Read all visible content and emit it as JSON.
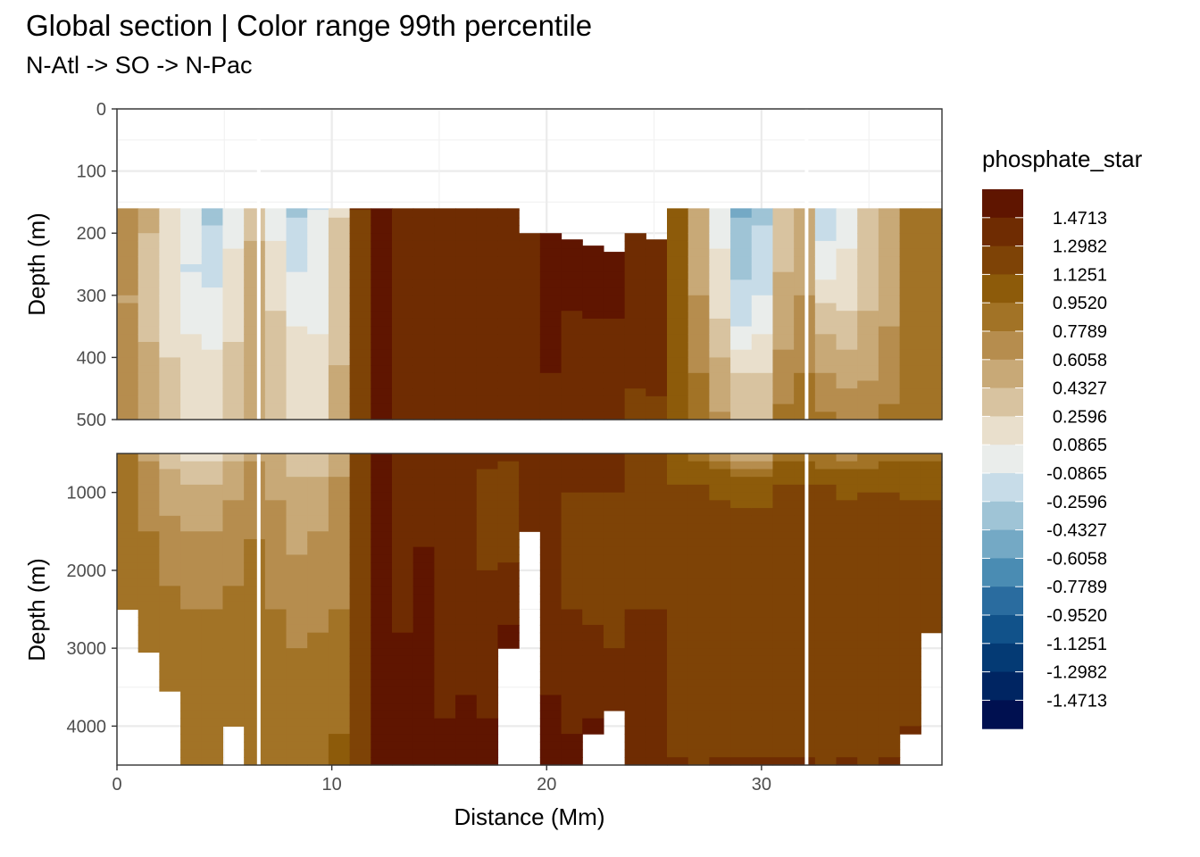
{
  "chart_data": {
    "type": "heatmap",
    "title": "Global section | Color range 99th percentile",
    "subtitle": "N-Atl -> SO -> N-Pac",
    "xlabel": "Distance (Mm)",
    "ylabel": "Depth (m)",
    "xlim": [
      0,
      38.4
    ],
    "x_ticks": [
      0,
      10,
      20,
      30
    ],
    "panels": [
      {
        "name": "upper",
        "ylim": [
          0,
          500
        ],
        "y_ticks": [
          0,
          100,
          200,
          300,
          400,
          500
        ]
      },
      {
        "name": "lower",
        "ylim": [
          500,
          4500
        ],
        "y_ticks": [
          1000,
          2000,
          3000,
          4000
        ]
      }
    ],
    "legend": {
      "title": "phosphate_star",
      "placement": "right",
      "labels": [
        "1.4713",
        "1.2982",
        "1.1251",
        "0.9520",
        "0.7789",
        "0.6058",
        "0.4327",
        "0.2596",
        "0.0865",
        "-0.0865",
        "-0.2596",
        "-0.4327",
        "-0.6058",
        "-0.7789",
        "-0.9520",
        "-1.1251",
        "-1.2982",
        "-1.4713"
      ],
      "colors": [
        "#5f1500",
        "#6f2c02",
        "#7e4306",
        "#8d5b0a",
        "#a27326",
        "#b68d4e",
        "#c8a977",
        "#d8c3a0",
        "#e9dfcc",
        "#eaedeb",
        "#c7dce8",
        "#9fc4d6",
        "#74a9c5",
        "#4a8cb3",
        "#2a6c9f",
        "#11528a",
        "#043a74",
        "#002562",
        "#001050"
      ]
    },
    "columns": [
      {
        "x": 0.0,
        "max_depth": 2500,
        "profile": [
          [
            160,
            0.78
          ],
          [
            300,
            0.6
          ],
          [
            500,
            0.78
          ],
          [
            1000,
            0.78
          ],
          [
            2000,
            0.95
          ],
          [
            4500,
            0.95
          ]
        ]
      },
      {
        "x": 1.0,
        "max_depth": 3050,
        "profile": [
          [
            160,
            0.5
          ],
          [
            260,
            0.35
          ],
          [
            400,
            0.45
          ],
          [
            800,
            0.7
          ],
          [
            1500,
            0.78
          ],
          [
            2500,
            0.95
          ]
        ]
      },
      {
        "x": 2.0,
        "max_depth": 3550,
        "profile": [
          [
            160,
            0.2
          ],
          [
            250,
            0.1
          ],
          [
            380,
            0.25
          ],
          [
            800,
            0.5
          ],
          [
            1300,
            0.6
          ],
          [
            2200,
            0.78
          ],
          [
            3000,
            0.95
          ]
        ]
      },
      {
        "x": 3.0,
        "max_depth": 4500,
        "profile": [
          [
            160,
            0.0
          ],
          [
            260,
            -0.09
          ],
          [
            420,
            0.17
          ],
          [
            800,
            0.4
          ],
          [
            1500,
            0.6
          ],
          [
            2500,
            0.78
          ],
          [
            4500,
            0.95
          ]
        ]
      },
      {
        "x": 4.0,
        "max_depth": 4500,
        "profile": [
          [
            160,
            -0.3
          ],
          [
            250,
            -0.15
          ],
          [
            400,
            0.1
          ],
          [
            800,
            0.4
          ],
          [
            1500,
            0.6
          ],
          [
            2500,
            0.78
          ],
          [
            4500,
            0.95
          ]
        ]
      },
      {
        "x": 5.0,
        "max_depth": 4000,
        "profile": [
          [
            160,
            0.0
          ],
          [
            300,
            0.17
          ],
          [
            450,
            0.35
          ],
          [
            900,
            0.55
          ],
          [
            1500,
            0.7
          ],
          [
            2500,
            0.82
          ],
          [
            4000,
            0.95
          ]
        ]
      },
      {
        "x": 6.0,
        "max_depth": 4500,
        "profile": [
          [
            160,
            0.4
          ],
          [
            400,
            0.55
          ],
          [
            900,
            0.7
          ],
          [
            2000,
            0.82
          ],
          [
            4500,
            0.95
          ]
        ]
      },
      {
        "x": 7.0,
        "max_depth": 4500,
        "profile": [
          [
            160,
            0.0
          ],
          [
            350,
            0.3
          ],
          [
            700,
            0.55
          ],
          [
            1500,
            0.65
          ],
          [
            2500,
            0.78
          ],
          [
            4500,
            0.95
          ]
        ]
      },
      {
        "x": 8.0,
        "max_depth": 4500,
        "profile": [
          [
            160,
            -0.3
          ],
          [
            250,
            -0.1
          ],
          [
            400,
            0.17
          ],
          [
            900,
            0.5
          ],
          [
            1800,
            0.6
          ],
          [
            3000,
            0.78
          ],
          [
            4500,
            0.95
          ]
        ]
      },
      {
        "x": 9.0,
        "max_depth": 4500,
        "profile": [
          [
            160,
            -0.09
          ],
          [
            300,
            0.0
          ],
          [
            450,
            0.2
          ],
          [
            800,
            0.45
          ],
          [
            1500,
            0.6
          ],
          [
            2800,
            0.78
          ],
          [
            4500,
            0.95
          ]
        ]
      },
      {
        "x": 10.0,
        "max_depth": 4500,
        "profile": [
          [
            160,
            0.25
          ],
          [
            350,
            0.4
          ],
          [
            700,
            0.6
          ],
          [
            1500,
            0.65
          ],
          [
            2500,
            0.78
          ],
          [
            4500,
            1.0
          ]
        ]
      },
      {
        "x": 11.0,
        "max_depth": 4500,
        "profile": [
          [
            160,
            1.3
          ],
          [
            500,
            1.2
          ],
          [
            1000,
            1.15
          ],
          [
            2500,
            1.2
          ],
          [
            4500,
            1.3
          ]
        ]
      },
      {
        "x": 12.0,
        "max_depth": 4500,
        "profile": [
          [
            160,
            1.5
          ],
          [
            2000,
            1.5
          ],
          [
            4500,
            1.5
          ]
        ]
      },
      {
        "x": 13.0,
        "max_depth": 4500,
        "profile": [
          [
            160,
            1.4
          ],
          [
            1500,
            1.45
          ],
          [
            4500,
            1.5
          ]
        ]
      },
      {
        "x": 14.0,
        "max_depth": 4500,
        "profile": [
          [
            160,
            1.4
          ],
          [
            1000,
            1.4
          ],
          [
            2000,
            1.5
          ],
          [
            4500,
            1.5
          ]
        ]
      },
      {
        "x": 15.0,
        "max_depth": 4500,
        "profile": [
          [
            160,
            1.4
          ],
          [
            1000,
            1.3
          ],
          [
            2500,
            1.4
          ],
          [
            4500,
            1.5
          ]
        ]
      },
      {
        "x": 16.0,
        "max_depth": 4500,
        "profile": [
          [
            160,
            1.4
          ],
          [
            800,
            1.3
          ],
          [
            2000,
            1.3
          ],
          [
            3000,
            1.45
          ],
          [
            4500,
            1.5
          ]
        ]
      },
      {
        "x": 17.0,
        "max_depth": 4500,
        "profile": [
          [
            160,
            1.4
          ],
          [
            700,
            1.3
          ],
          [
            1500,
            1.2
          ],
          [
            2500,
            1.4
          ],
          [
            4500,
            1.5
          ]
        ]
      },
      {
        "x": 18.0,
        "max_depth": 3000,
        "profile": [
          [
            160,
            1.4
          ],
          [
            600,
            1.3
          ],
          [
            1500,
            1.2
          ],
          [
            2500,
            1.45
          ],
          [
            3000,
            1.5
          ]
        ]
      },
      {
        "x": 19.0,
        "max_depth": 1500,
        "profile": [
          [
            200,
            1.4
          ],
          [
            600,
            1.3
          ],
          [
            1200,
            1.3
          ],
          [
            1500,
            1.4
          ]
        ]
      },
      {
        "x": 20.0,
        "max_depth": 4500,
        "profile": [
          [
            200,
            1.5
          ],
          [
            1000,
            1.4
          ],
          [
            2000,
            1.3
          ],
          [
            3000,
            1.45
          ],
          [
            4500,
            1.5
          ]
        ]
      },
      {
        "x": 21.0,
        "max_depth": 4500,
        "profile": [
          [
            210,
            1.5
          ],
          [
            1000,
            1.3
          ],
          [
            2000,
            1.2
          ],
          [
            3000,
            1.4
          ],
          [
            4500,
            1.5
          ]
        ]
      },
      {
        "x": 22.0,
        "max_depth": 4100,
        "profile": [
          [
            220,
            1.5
          ],
          [
            1000,
            1.3
          ],
          [
            2000,
            1.2
          ],
          [
            3000,
            1.35
          ],
          [
            4100,
            1.5
          ]
        ]
      },
      {
        "x": 23.0,
        "max_depth": 3800,
        "profile": [
          [
            230,
            1.5
          ],
          [
            1000,
            1.3
          ],
          [
            2000,
            1.2
          ],
          [
            3000,
            1.3
          ],
          [
            3800,
            1.45
          ]
        ]
      },
      {
        "x": 24.0,
        "max_depth": 4500,
        "profile": [
          [
            200,
            1.4
          ],
          [
            700,
            1.2
          ],
          [
            1500,
            1.2
          ],
          [
            2500,
            1.3
          ],
          [
            4500,
            1.3
          ]
        ]
      },
      {
        "x": 25.0,
        "max_depth": 4500,
        "profile": [
          [
            210,
            1.4
          ],
          [
            700,
            1.2
          ],
          [
            1500,
            1.25
          ],
          [
            2500,
            1.3
          ],
          [
            4500,
            1.3
          ]
        ]
      },
      {
        "x": 26.0,
        "max_depth": 4500,
        "profile": [
          [
            160,
            1.1
          ],
          [
            350,
            0.95
          ],
          [
            700,
            1.1
          ],
          [
            1500,
            1.2
          ],
          [
            4500,
            1.3
          ]
        ]
      },
      {
        "x": 27.0,
        "max_depth": 4500,
        "profile": [
          [
            160,
            0.5
          ],
          [
            300,
            0.6
          ],
          [
            500,
            0.9
          ],
          [
            900,
            1.15
          ],
          [
            4500,
            1.3
          ]
        ]
      },
      {
        "x": 28.0,
        "max_depth": 4500,
        "profile": [
          [
            160,
            0.0
          ],
          [
            300,
            0.17
          ],
          [
            450,
            0.55
          ],
          [
            800,
            1.05
          ],
          [
            1500,
            1.25
          ],
          [
            4500,
            1.3
          ]
        ]
      },
      {
        "x": 29.0,
        "max_depth": 4500,
        "profile": [
          [
            160,
            -0.45
          ],
          [
            250,
            -0.3
          ],
          [
            350,
            -0.09
          ],
          [
            450,
            0.35
          ],
          [
            800,
            1.0
          ],
          [
            1500,
            1.25
          ],
          [
            4500,
            1.3
          ]
        ]
      },
      {
        "x": 30.0,
        "max_depth": 4500,
        "profile": [
          [
            160,
            -0.3
          ],
          [
            300,
            -0.09
          ],
          [
            450,
            0.35
          ],
          [
            800,
            1.0
          ],
          [
            1500,
            1.25
          ],
          [
            4500,
            1.3
          ]
        ]
      },
      {
        "x": 31.0,
        "max_depth": 4500,
        "profile": [
          [
            160,
            0.3
          ],
          [
            350,
            0.55
          ],
          [
            550,
            0.9
          ],
          [
            1000,
            1.2
          ],
          [
            4500,
            1.3
          ]
        ]
      },
      {
        "x": 32.0,
        "max_depth": 4500,
        "profile": [
          [
            160,
            0.5
          ],
          [
            300,
            0.6
          ],
          [
            500,
            0.9
          ],
          [
            1000,
            1.2
          ],
          [
            4500,
            1.3
          ]
        ]
      },
      {
        "x": 33.0,
        "max_depth": 4500,
        "profile": [
          [
            160,
            -0.2
          ],
          [
            250,
            0.0
          ],
          [
            350,
            0.4
          ],
          [
            500,
            0.8
          ],
          [
            900,
            1.15
          ],
          [
            4500,
            1.3
          ]
        ]
      },
      {
        "x": 34.0,
        "max_depth": 4500,
        "profile": [
          [
            160,
            0.0
          ],
          [
            300,
            0.2
          ],
          [
            450,
            0.6
          ],
          [
            700,
            0.95
          ],
          [
            1200,
            1.2
          ],
          [
            4500,
            1.3
          ]
        ]
      },
      {
        "x": 35.0,
        "max_depth": 4500,
        "profile": [
          [
            160,
            0.3
          ],
          [
            350,
            0.45
          ],
          [
            550,
            0.8
          ],
          [
            1000,
            1.15
          ],
          [
            4500,
            1.3
          ]
        ]
      },
      {
        "x": 36.0,
        "max_depth": 4500,
        "profile": [
          [
            160,
            0.5
          ],
          [
            350,
            0.6
          ],
          [
            600,
            0.95
          ],
          [
            1200,
            1.2
          ],
          [
            4500,
            1.3
          ]
        ]
      },
      {
        "x": 37.0,
        "max_depth": 4100,
        "profile": [
          [
            160,
            0.8
          ],
          [
            400,
            0.8
          ],
          [
            700,
            1.0
          ],
          [
            1300,
            1.2
          ],
          [
            4100,
            1.3
          ]
        ]
      },
      {
        "x": 38.0,
        "max_depth": 2800,
        "profile": [
          [
            160,
            0.95
          ],
          [
            500,
            0.9
          ],
          [
            900,
            1.1
          ],
          [
            1500,
            1.2
          ],
          [
            2800,
            1.3
          ]
        ]
      }
    ],
    "gaps_x": [
      6.6,
      32.1
    ]
  }
}
